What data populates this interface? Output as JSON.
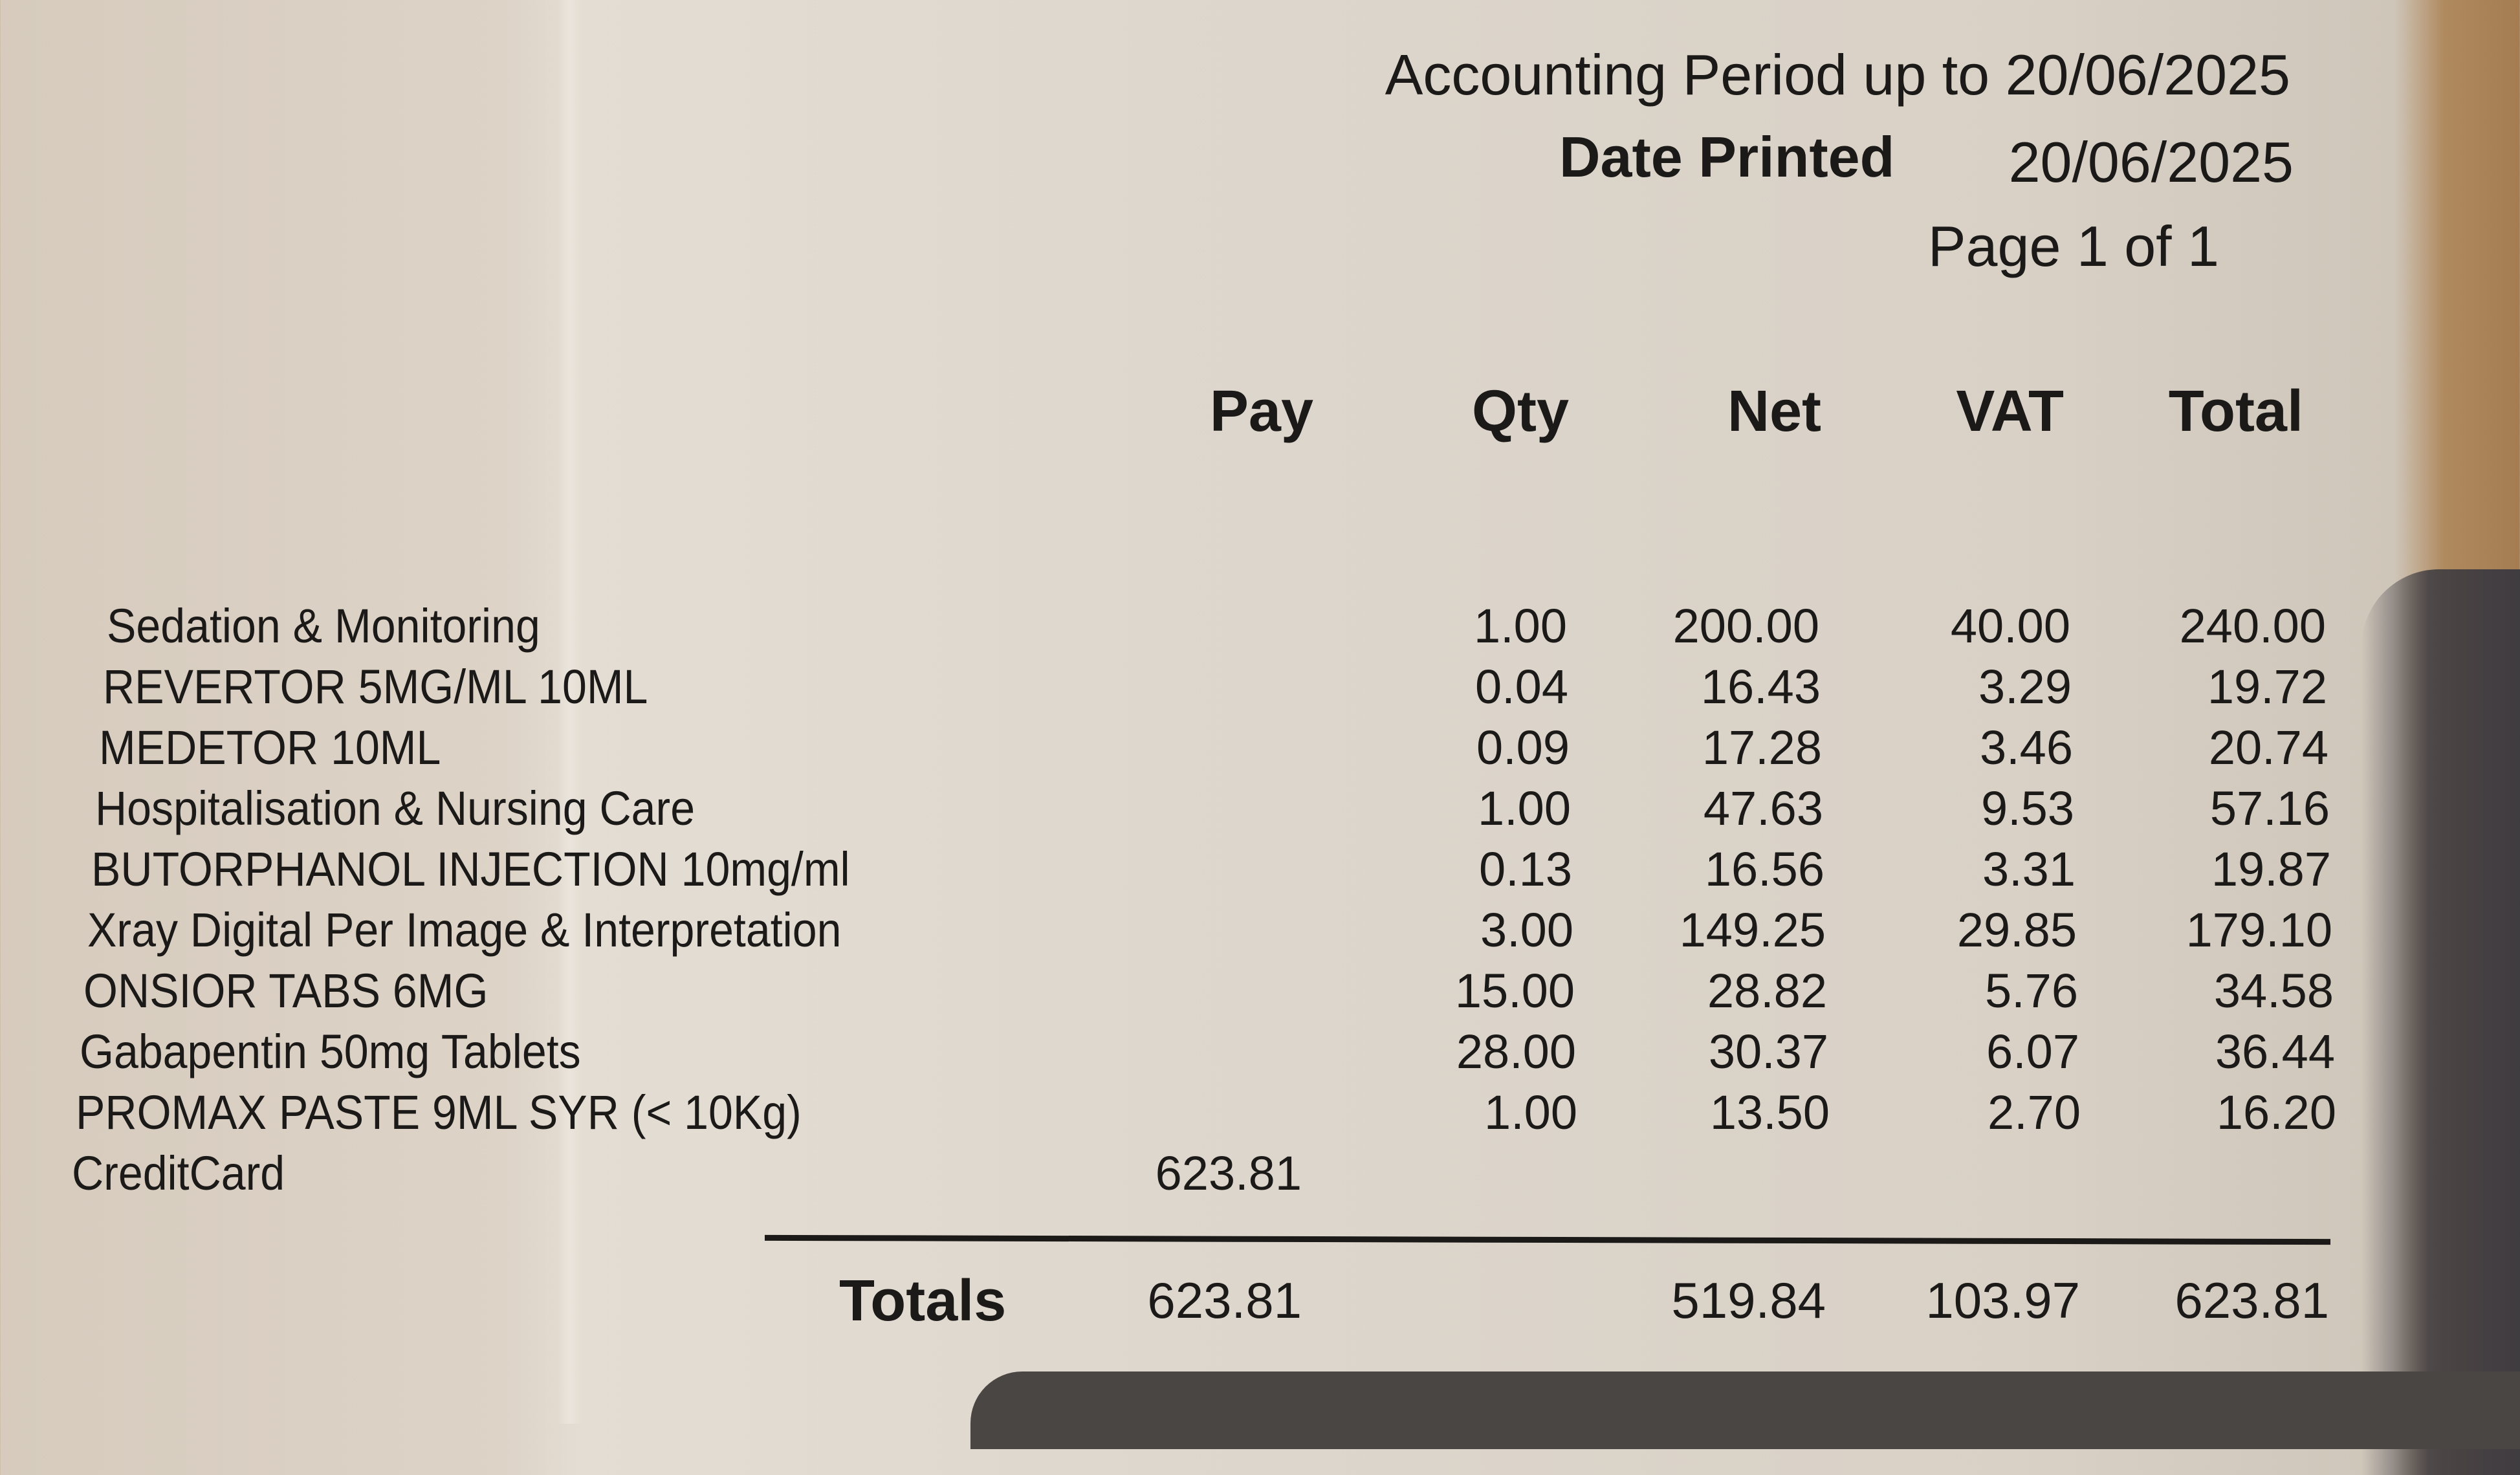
{
  "header": {
    "accounting_period_label": "Accounting Period up to 20/06/2025",
    "date_printed_label": "Date Printed",
    "date_printed_value": "20/06/2025",
    "page_label": "Page 1 of  1"
  },
  "columns": {
    "pay": "Pay",
    "qty": "Qty",
    "net": "Net",
    "vat": "VAT",
    "total": "Total"
  },
  "rows": [
    {
      "description": "Sedation & Monitoring",
      "pay": "",
      "qty": "1.00",
      "net": "200.00",
      "vat": "40.00",
      "total": "240.00"
    },
    {
      "description": "REVERTOR 5MG/ML 10ML",
      "pay": "",
      "qty": "0.04",
      "net": "16.43",
      "vat": "3.29",
      "total": "19.72"
    },
    {
      "description": "MEDETOR 10ML",
      "pay": "",
      "qty": "0.09",
      "net": "17.28",
      "vat": "3.46",
      "total": "20.74"
    },
    {
      "description": "Hospitalisation & Nursing Care",
      "pay": "",
      "qty": "1.00",
      "net": "47.63",
      "vat": "9.53",
      "total": "57.16"
    },
    {
      "description": "BUTORPHANOL INJECTION 10mg/ml",
      "pay": "",
      "qty": "0.13",
      "net": "16.56",
      "vat": "3.31",
      "total": "19.87"
    },
    {
      "description": "Xray  Digital Per Image & Interpretation",
      "pay": "",
      "qty": "3.00",
      "net": "149.25",
      "vat": "29.85",
      "total": "179.10"
    },
    {
      "description": "ONSIOR TABS 6MG",
      "pay": "",
      "qty": "15.00",
      "net": "28.82",
      "vat": "5.76",
      "total": "34.58"
    },
    {
      "description": "Gabapentin 50mg Tablets",
      "pay": "",
      "qty": "28.00",
      "net": "30.37",
      "vat": "6.07",
      "total": "36.44"
    },
    {
      "description": "PROMAX PASTE 9ML SYR (< 10Kg)",
      "pay": "",
      "qty": "1.00",
      "net": "13.50",
      "vat": "2.70",
      "total": "16.20"
    },
    {
      "description": "CreditCard",
      "pay": "623.81",
      "qty": "",
      "net": "",
      "vat": "",
      "total": ""
    }
  ],
  "totals": {
    "label": "Totals",
    "pay": "623.81",
    "net": "519.84",
    "vat": "103.97",
    "total": "623.81"
  }
}
